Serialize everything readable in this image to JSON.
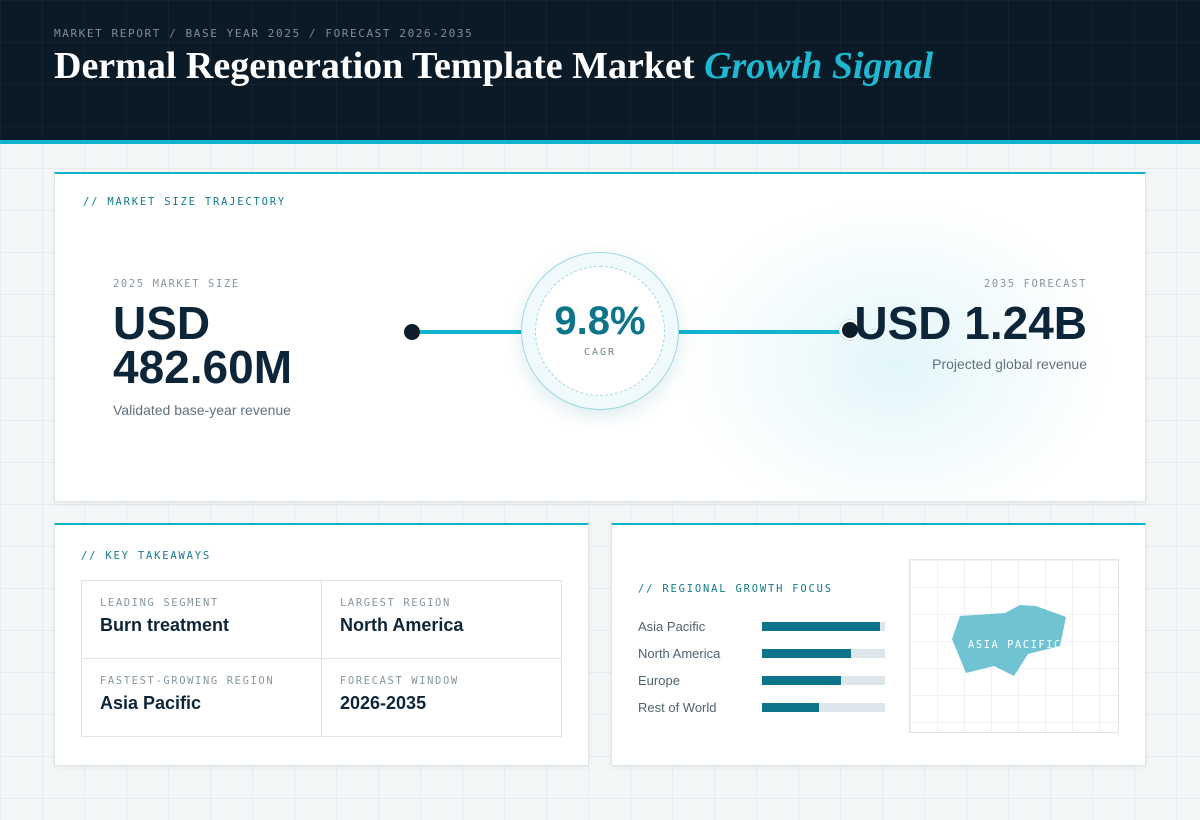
{
  "header": {
    "eyebrow": "MARKET REPORT / BASE YEAR 2025 / FORECAST 2026-2035",
    "title": "Dermal Regeneration Template Market",
    "title_accent": "Growth Signal"
  },
  "trajectory": {
    "label": "// MARKET SIZE TRAJECTORY",
    "base": {
      "label": "2025 MARKET SIZE",
      "value_line1": "USD",
      "value_line2": "482.60M",
      "caption": "Validated base-year revenue"
    },
    "cagr": {
      "value": "9.8%",
      "label": "CAGR"
    },
    "forecast": {
      "label": "2035 FORECAST",
      "value": "USD 1.24B",
      "caption": "Projected global revenue"
    }
  },
  "takeaways": {
    "label": "// KEY TAKEAWAYS",
    "items": [
      {
        "label": "LEADING SEGMENT",
        "value": "Burn treatment"
      },
      {
        "label": "LARGEST REGION",
        "value": "North America"
      },
      {
        "label": "FASTEST-GROWING REGION",
        "value": "Asia Pacific"
      },
      {
        "label": "FORECAST WINDOW",
        "value": "2026-2035"
      }
    ]
  },
  "regional": {
    "label": "// REGIONAL GROWTH FOCUS",
    "bars": [
      {
        "name": "Asia Pacific",
        "level": 0.96
      },
      {
        "name": "North America",
        "level": 0.72
      },
      {
        "name": "Europe",
        "level": 0.64
      },
      {
        "name": "Rest of World",
        "level": 0.46
      }
    ],
    "map_label": "ASIA PACIFIC"
  },
  "colors": {
    "header_bg": "#0a1a27",
    "accent": "#10b4cf",
    "primary_teal": "#0d7489",
    "ink": "#0d2538"
  }
}
